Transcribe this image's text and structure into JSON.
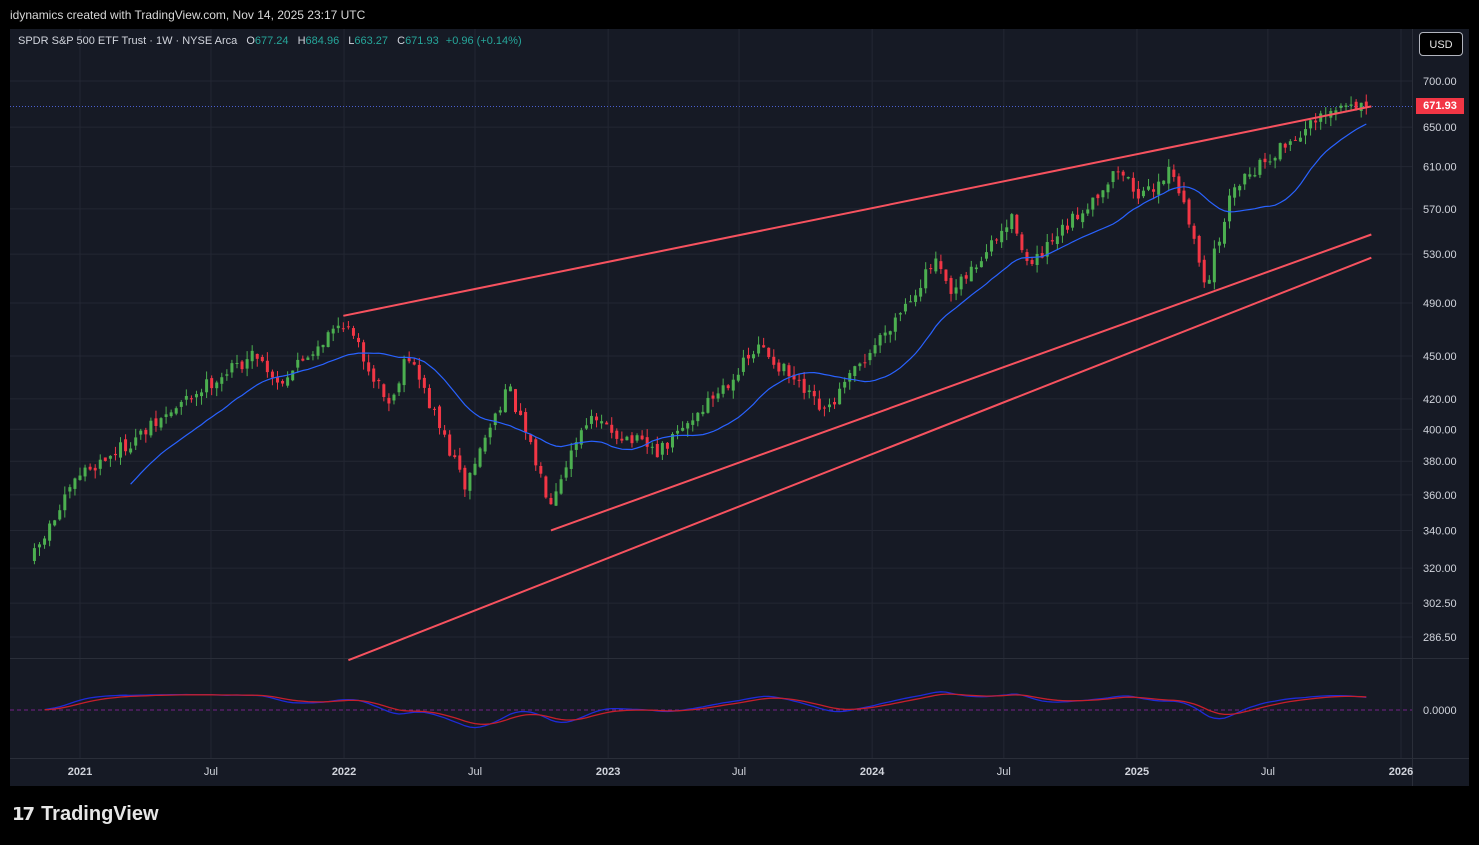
{
  "header": {
    "attribution": "idynamics created with TradingView.com, Nov 14, 2025 23:17 UTC"
  },
  "legend": {
    "symbol": "SPDR S&P 500 ETF Trust · 1W · NYSE Arca",
    "open_label": "O",
    "open": "677.24",
    "high_label": "H",
    "high": "684.96",
    "low_label": "L",
    "low": "663.27",
    "close_label": "C",
    "close": "671.93",
    "change": "+0.96 (+0.14%)"
  },
  "currency": "USD",
  "last_price": "671.93",
  "brand": {
    "logo_mark": "17",
    "name": "TradingView"
  },
  "colors": {
    "background": "#161a25",
    "grid": "#232733",
    "up": "#4caf50",
    "down": "#f23645",
    "ma": "#2962ff",
    "trendline": "#f7525f",
    "osc_fast": "#1e2bd8",
    "osc_slow": "#c51f2b"
  },
  "chart_data": {
    "type": "candlestick",
    "interval": "1W",
    "y_scale": "log",
    "ylim": [
      276,
      725
    ],
    "price_ticks": [
      "700.00",
      "650.00",
      "610.00",
      "570.00",
      "530.00",
      "490.00",
      "450.00",
      "420.00",
      "400.00",
      "380.00",
      "360.00",
      "340.00",
      "320.00",
      "302.50",
      "286.50"
    ],
    "indicator_ticks": [
      "0.0000"
    ],
    "time_ticks": [
      "2021",
      "Jul",
      "2022",
      "Jul",
      "2023",
      "Jul",
      "2024",
      "Jul",
      "2025",
      "Jul",
      "2026"
    ],
    "keyframes": [
      {
        "date": "2020-10-30",
        "close": 327
      },
      {
        "date": "2021-01-01",
        "close": 372
      },
      {
        "date": "2021-04-01",
        "close": 398
      },
      {
        "date": "2021-07-01",
        "close": 432
      },
      {
        "date": "2021-09-03",
        "close": 452
      },
      {
        "date": "2021-10-01",
        "close": 431
      },
      {
        "date": "2021-12-31",
        "close": 476
      },
      {
        "date": "2022-03-07",
        "close": 415
      },
      {
        "date": "2022-03-28",
        "close": 455
      },
      {
        "date": "2022-06-17",
        "close": 365
      },
      {
        "date": "2022-08-15",
        "close": 429
      },
      {
        "date": "2022-10-12",
        "close": 357
      },
      {
        "date": "2022-12-01",
        "close": 407
      },
      {
        "date": "2023-03-13",
        "close": 385
      },
      {
        "date": "2023-07-31",
        "close": 457
      },
      {
        "date": "2023-10-27",
        "close": 410
      },
      {
        "date": "2024-03-28",
        "close": 523
      },
      {
        "date": "2024-04-19",
        "close": 495
      },
      {
        "date": "2024-07-15",
        "close": 562
      },
      {
        "date": "2024-08-05",
        "close": 517
      },
      {
        "date": "2024-12-06",
        "close": 607
      },
      {
        "date": "2025-01-10",
        "close": 580
      },
      {
        "date": "2025-02-19",
        "close": 610
      },
      {
        "date": "2025-04-07",
        "close": 505
      },
      {
        "date": "2025-05-16",
        "close": 594
      },
      {
        "date": "2025-08-15",
        "close": 644
      },
      {
        "date": "2025-10-24",
        "close": 677
      },
      {
        "date": "2025-11-14",
        "close": 671.93
      }
    ],
    "trendlines": [
      {
        "from": {
          "date": "2021-12-31",
          "price": 480
        },
        "to": {
          "date": "2025-11-21",
          "price": 672
        }
      },
      {
        "from": {
          "date": "2022-10-14",
          "price": 340
        },
        "to": {
          "date": "2025-11-21",
          "price": 547
        }
      },
      {
        "from": {
          "date": "2022-01-07",
          "price": 276
        },
        "to": {
          "date": "2025-11-21",
          "price": 527
        }
      }
    ]
  }
}
